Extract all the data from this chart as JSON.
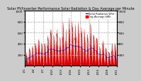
{
  "title": "Solar PV/Inverter Performance Solar Radiation & Day Average per Minute",
  "bg_color": "#cccccc",
  "plot_bg": "#ffffff",
  "bar_color": "#dd0000",
  "line_color_avg": "#ff4444",
  "legend_label1": "Solar Radiation W/m²",
  "legend_label2": "Day Average kWh",
  "legend_color1": "#0000cc",
  "legend_color2": "#ff0000",
  "ylim": [
    0,
    1000
  ],
  "yticks": [
    200,
    400,
    600,
    800,
    1000
  ],
  "num_points": 600,
  "days": 30,
  "seed": 7,
  "grid_color": "#aaaaaa",
  "title_color": "#000000",
  "title_fontsize": 3.5,
  "tick_fontsize": 3.0,
  "legend_fontsize": 2.5
}
